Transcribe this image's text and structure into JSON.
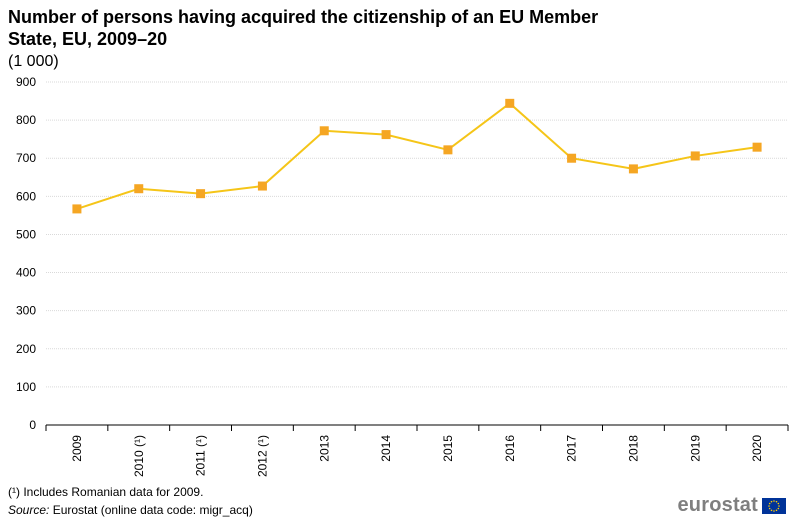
{
  "header": {
    "title": "Number of persons having acquired the citizenship of an EU Member State, EU, 2009–20",
    "subtitle": "(1 000)"
  },
  "footer": {
    "footnote": "(¹) Includes Romanian data for 2009.",
    "source_label": "Source:",
    "source_text": "Eurostat (online data code: migr_acq)",
    "logo_text": "eurostat"
  },
  "colors": {
    "line": "#f5c518",
    "marker": "#f5a623",
    "grid": "#d9d9d9",
    "axis": "#000000",
    "eu_flag_blue": "#003399",
    "eu_flag_stars": "#ffcc00"
  },
  "chart_data": {
    "type": "line",
    "title": "Number of persons having acquired the citizenship of an EU Member State, EU, 2009–20",
    "subtitle": "(1 000)",
    "categories": [
      "2009",
      "2010 (¹)",
      "2011 (¹)",
      "2012 (¹)",
      "2013",
      "2014",
      "2015",
      "2016",
      "2017",
      "2018",
      "2019",
      "2020"
    ],
    "series": [
      {
        "values": [
          567,
          620,
          607,
          627,
          772,
          762,
          722,
          844,
          700,
          672,
          706,
          729
        ]
      }
    ],
    "ylim": [
      0,
      900
    ],
    "yticks": [
      0,
      100,
      200,
      300,
      400,
      500,
      600,
      700,
      800,
      900
    ],
    "grid": true,
    "legend": "none",
    "marker": "square"
  }
}
